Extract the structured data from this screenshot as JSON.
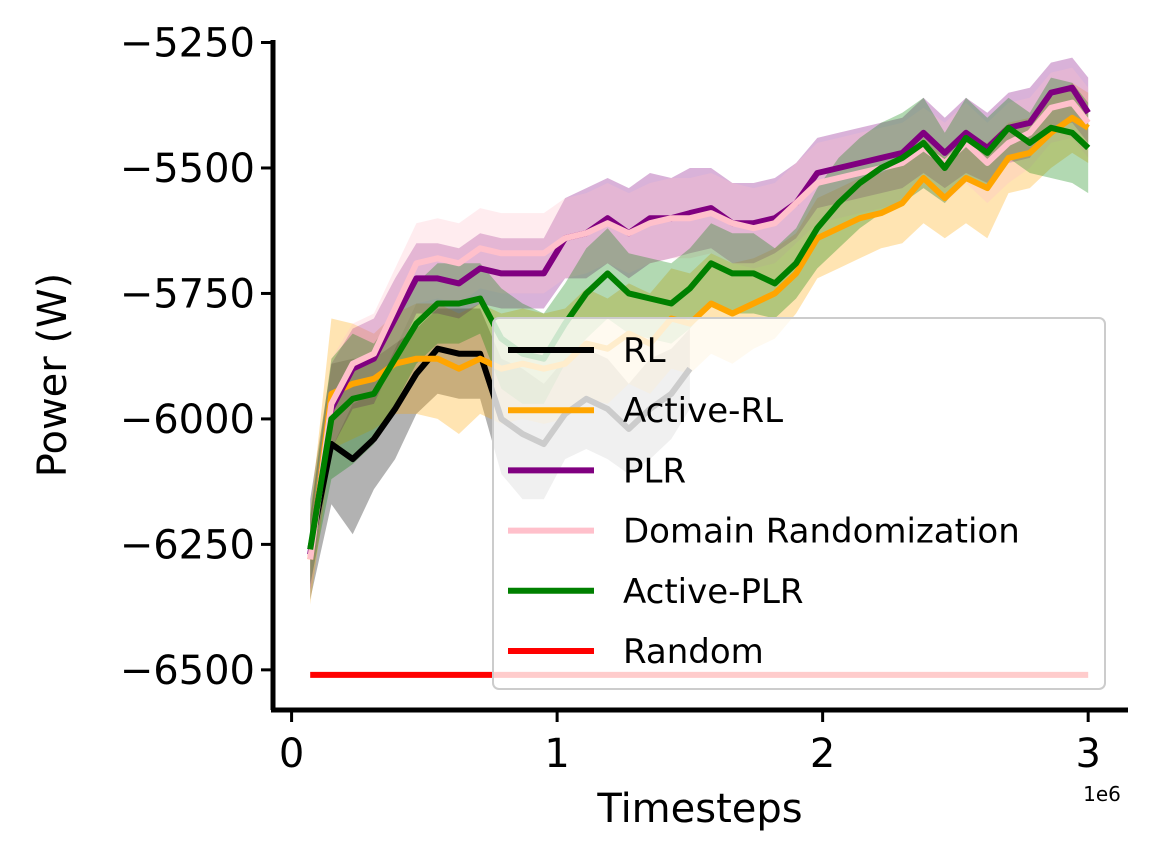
{
  "chart_data": {
    "type": "line",
    "xlabel": "Timesteps",
    "ylabel": "Power (W)",
    "x_offset_label": "1e6",
    "xlim": [
      -0.07,
      3.15
    ],
    "ylim": [
      -6580,
      -5245
    ],
    "xticks": [
      0,
      1,
      2,
      3
    ],
    "xtick_labels": [
      "0",
      "1",
      "2",
      "3"
    ],
    "yticks": [
      -6500,
      -6250,
      -6000,
      -5750,
      -5500,
      -5250
    ],
    "ytick_labels": [
      "−6500",
      "−6250",
      "−6000",
      "−5750",
      "−5500",
      "−5250"
    ],
    "grid": false,
    "legend_position": "lower-right",
    "series": [
      {
        "name": "RL",
        "color": "#000000",
        "x": [
          0.07,
          0.15,
          0.23,
          0.31,
          0.39,
          0.47,
          0.55,
          0.63,
          0.71,
          0.79,
          0.87,
          0.95,
          1.03,
          1.11,
          1.19,
          1.27,
          1.35,
          1.43,
          1.5
        ],
        "y": [
          -6260,
          -6050,
          -6080,
          -6040,
          -5980,
          -5910,
          -5860,
          -5870,
          -5870,
          -6000,
          -6030,
          -6050,
          -5990,
          -5960,
          -5980,
          -6020,
          -5980,
          -5950,
          -5900
        ],
        "lower": [
          -6360,
          -6170,
          -6230,
          -6140,
          -6080,
          -5990,
          -5950,
          -5960,
          -5960,
          -6110,
          -6160,
          -6160,
          -6080,
          -6060,
          -6080,
          -6110,
          -6080,
          -6040,
          -5980
        ],
        "upper": [
          -6160,
          -5890,
          -5880,
          -5880,
          -5850,
          -5820,
          -5780,
          -5780,
          -5780,
          -5880,
          -5900,
          -5930,
          -5880,
          -5860,
          -5880,
          -5930,
          -5880,
          -5860,
          -5820
        ]
      },
      {
        "name": "Active-RL",
        "color": "#ffa500",
        "x": [
          0.07,
          0.15,
          0.23,
          0.31,
          0.39,
          0.47,
          0.55,
          0.63,
          0.71,
          0.79,
          0.87,
          0.95,
          1.03,
          1.11,
          1.19,
          1.27,
          1.35,
          1.43,
          1.5,
          1.58,
          1.66,
          1.74,
          1.82,
          1.9,
          1.98,
          2.06,
          2.14,
          2.22,
          2.3,
          2.38,
          2.46,
          2.54,
          2.62,
          2.7,
          2.78,
          2.86,
          2.94,
          3.0
        ],
        "y": [
          -6280,
          -5950,
          -5930,
          -5920,
          -5890,
          -5880,
          -5880,
          -5900,
          -5880,
          -5900,
          -5890,
          -5900,
          -5890,
          -5850,
          -5860,
          -5830,
          -5850,
          -5800,
          -5810,
          -5770,
          -5790,
          -5770,
          -5750,
          -5710,
          -5640,
          -5620,
          -5600,
          -5590,
          -5570,
          -5520,
          -5560,
          -5520,
          -5540,
          -5480,
          -5470,
          -5430,
          -5400,
          -5420
        ],
        "lower": [
          -6370,
          -6060,
          -6040,
          -6020,
          -5990,
          -5990,
          -6000,
          -6030,
          -5990,
          -6010,
          -6000,
          -6010,
          -6000,
          -5960,
          -5970,
          -5930,
          -5950,
          -5900,
          -5910,
          -5870,
          -5890,
          -5860,
          -5840,
          -5790,
          -5720,
          -5700,
          -5680,
          -5660,
          -5650,
          -5610,
          -5640,
          -5610,
          -5640,
          -5550,
          -5540,
          -5500,
          -5470,
          -5490
        ],
        "upper": [
          -6190,
          -5800,
          -5810,
          -5830,
          -5790,
          -5770,
          -5770,
          -5790,
          -5770,
          -5790,
          -5780,
          -5790,
          -5780,
          -5740,
          -5760,
          -5730,
          -5750,
          -5700,
          -5710,
          -5670,
          -5690,
          -5680,
          -5660,
          -5630,
          -5560,
          -5540,
          -5520,
          -5510,
          -5490,
          -5440,
          -5480,
          -5440,
          -5450,
          -5410,
          -5400,
          -5360,
          -5330,
          -5350
        ]
      },
      {
        "name": "PLR",
        "color": "#800080",
        "x": [
          0.07,
          0.15,
          0.23,
          0.31,
          0.39,
          0.47,
          0.55,
          0.63,
          0.71,
          0.79,
          0.87,
          0.95,
          1.03,
          1.11,
          1.19,
          1.27,
          1.35,
          1.43,
          1.5,
          1.58,
          1.66,
          1.74,
          1.82,
          1.9,
          1.98,
          2.06,
          2.14,
          2.22,
          2.3,
          2.38,
          2.46,
          2.54,
          2.62,
          2.7,
          2.78,
          2.86,
          2.94,
          3.0
        ],
        "y": [
          -6270,
          -5980,
          -5900,
          -5880,
          -5800,
          -5720,
          -5720,
          -5730,
          -5700,
          -5710,
          -5710,
          -5710,
          -5640,
          -5630,
          -5600,
          -5630,
          -5600,
          -5600,
          -5590,
          -5580,
          -5610,
          -5610,
          -5600,
          -5570,
          -5510,
          -5500,
          -5490,
          -5480,
          -5470,
          -5430,
          -5470,
          -5430,
          -5460,
          -5420,
          -5410,
          -5350,
          -5340,
          -5390
        ],
        "lower": [
          -6340,
          -6060,
          -5980,
          -5970,
          -5880,
          -5790,
          -5790,
          -5800,
          -5770,
          -5780,
          -5780,
          -5780,
          -5720,
          -5720,
          -5690,
          -5720,
          -5690,
          -5680,
          -5670,
          -5660,
          -5690,
          -5690,
          -5670,
          -5640,
          -5580,
          -5570,
          -5560,
          -5550,
          -5540,
          -5510,
          -5540,
          -5510,
          -5530,
          -5490,
          -5480,
          -5420,
          -5410,
          -5450
        ],
        "upper": [
          -6200,
          -5890,
          -5820,
          -5800,
          -5720,
          -5650,
          -5650,
          -5660,
          -5630,
          -5640,
          -5640,
          -5640,
          -5560,
          -5540,
          -5520,
          -5540,
          -5510,
          -5520,
          -5500,
          -5500,
          -5530,
          -5530,
          -5520,
          -5490,
          -5440,
          -5430,
          -5420,
          -5410,
          -5400,
          -5360,
          -5400,
          -5360,
          -5390,
          -5350,
          -5340,
          -5290,
          -5280,
          -5320
        ]
      },
      {
        "name": "Domain Randomization",
        "color": "#ffc0cb",
        "x": [
          0.07,
          0.15,
          0.23,
          0.31,
          0.39,
          0.47,
          0.55,
          0.63,
          0.71,
          0.79,
          0.87,
          0.95,
          1.03,
          1.11,
          1.19,
          1.27,
          1.35,
          1.43,
          1.5,
          1.58,
          1.66,
          1.74,
          1.82,
          1.9,
          1.98,
          2.06,
          2.14,
          2.22,
          2.3,
          2.38,
          2.46,
          2.54,
          2.62,
          2.7,
          2.78,
          2.86,
          2.94,
          3.0
        ],
        "y": [
          -6280,
          -5970,
          -5890,
          -5870,
          -5780,
          -5690,
          -5680,
          -5690,
          -5660,
          -5670,
          -5670,
          -5670,
          -5640,
          -5630,
          -5610,
          -5630,
          -5610,
          -5600,
          -5600,
          -5590,
          -5610,
          -5620,
          -5610,
          -5570,
          -5530,
          -5520,
          -5510,
          -5500,
          -5490,
          -5460,
          -5490,
          -5450,
          -5490,
          -5450,
          -5430,
          -5380,
          -5370,
          -5410
        ],
        "lower": [
          -6340,
          -6060,
          -5970,
          -5950,
          -5860,
          -5770,
          -5760,
          -5770,
          -5740,
          -5750,
          -5750,
          -5750,
          -5720,
          -5710,
          -5690,
          -5710,
          -5690,
          -5680,
          -5680,
          -5670,
          -5690,
          -5700,
          -5690,
          -5650,
          -5610,
          -5600,
          -5590,
          -5580,
          -5570,
          -5540,
          -5570,
          -5530,
          -5570,
          -5530,
          -5500,
          -5450,
          -5440,
          -5480
        ],
        "upper": [
          -6220,
          -5880,
          -5810,
          -5790,
          -5700,
          -5610,
          -5600,
          -5610,
          -5580,
          -5590,
          -5590,
          -5590,
          -5560,
          -5550,
          -5530,
          -5550,
          -5530,
          -5520,
          -5520,
          -5510,
          -5530,
          -5540,
          -5530,
          -5490,
          -5450,
          -5440,
          -5430,
          -5420,
          -5410,
          -5380,
          -5410,
          -5370,
          -5410,
          -5370,
          -5360,
          -5310,
          -5300,
          -5340
        ]
      },
      {
        "name": "Active-PLR",
        "color": "#008000",
        "x": [
          0.07,
          0.15,
          0.23,
          0.31,
          0.39,
          0.47,
          0.55,
          0.63,
          0.71,
          0.79,
          0.87,
          0.95,
          1.03,
          1.11,
          1.19,
          1.27,
          1.35,
          1.43,
          1.5,
          1.58,
          1.66,
          1.74,
          1.82,
          1.9,
          1.98,
          2.06,
          2.14,
          2.22,
          2.3,
          2.38,
          2.46,
          2.54,
          2.62,
          2.7,
          2.78,
          2.86,
          2.94,
          3.0
        ],
        "y": [
          -6260,
          -6000,
          -5960,
          -5950,
          -5880,
          -5810,
          -5770,
          -5770,
          -5760,
          -5840,
          -5870,
          -5880,
          -5810,
          -5750,
          -5710,
          -5750,
          -5760,
          -5770,
          -5740,
          -5690,
          -5710,
          -5710,
          -5730,
          -5690,
          -5620,
          -5570,
          -5530,
          -5500,
          -5480,
          -5450,
          -5500,
          -5440,
          -5470,
          -5420,
          -5450,
          -5420,
          -5430,
          -5460
        ],
        "lower": [
          -6330,
          -6120,
          -6090,
          -6050,
          -5970,
          -5890,
          -5850,
          -5850,
          -5830,
          -5940,
          -5970,
          -5970,
          -5890,
          -5840,
          -5800,
          -5830,
          -5840,
          -5850,
          -5820,
          -5770,
          -5790,
          -5790,
          -5800,
          -5760,
          -5700,
          -5660,
          -5620,
          -5590,
          -5570,
          -5540,
          -5570,
          -5520,
          -5540,
          -5480,
          -5510,
          -5520,
          -5530,
          -5550
        ],
        "upper": [
          -6190,
          -5880,
          -5830,
          -5850,
          -5790,
          -5730,
          -5690,
          -5690,
          -5690,
          -5740,
          -5770,
          -5790,
          -5730,
          -5660,
          -5620,
          -5670,
          -5680,
          -5690,
          -5660,
          -5610,
          -5630,
          -5630,
          -5660,
          -5620,
          -5540,
          -5480,
          -5440,
          -5410,
          -5390,
          -5360,
          -5430,
          -5360,
          -5400,
          -5360,
          -5390,
          -5320,
          -5330,
          -5370
        ]
      },
      {
        "name": "Random",
        "color": "#ff0000",
        "x": [
          0.07,
          3.0
        ],
        "y": [
          -6510,
          -6510
        ],
        "lower": null,
        "upper": null
      }
    ]
  }
}
